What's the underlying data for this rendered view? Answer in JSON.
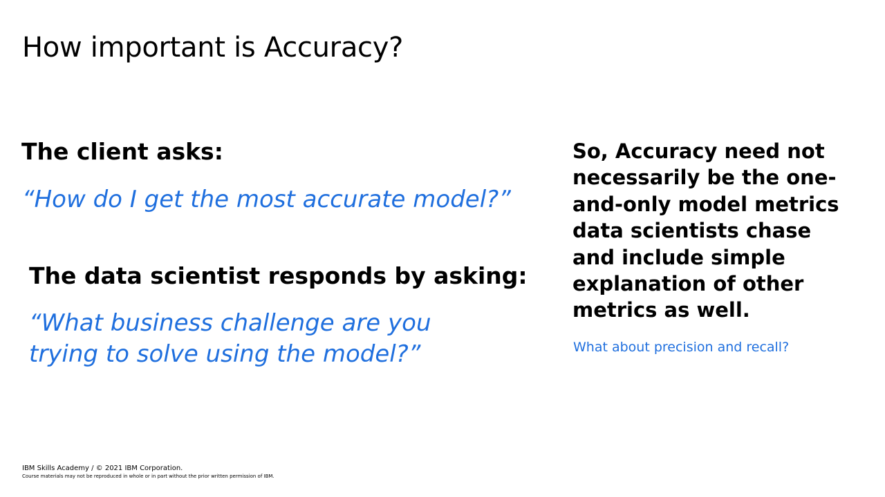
{
  "slide": {
    "title": "How important is Accuracy?",
    "client_heading": "The client asks:",
    "client_quote": "“How do I get the most accurate model?”",
    "ds_heading": "The data scientist responds by asking:",
    "ds_quote": "“What business challenge are you trying to solve using the model?”",
    "conclusion": "So, Accuracy need not necessarily be the one-and-only model metrics data scientists chase and include simple explanation of other metrics as well.",
    "followup": "What about precision and recall?"
  },
  "footer": {
    "copyright": "IBM Skills Academy / © 2021 IBM Corporation.",
    "notice": "Course materials may not be reproduced in whole or in part without the prior written permission of IBM."
  },
  "colors": {
    "accent": "#1f6fde",
    "text": "#000000",
    "background": "#ffffff"
  }
}
